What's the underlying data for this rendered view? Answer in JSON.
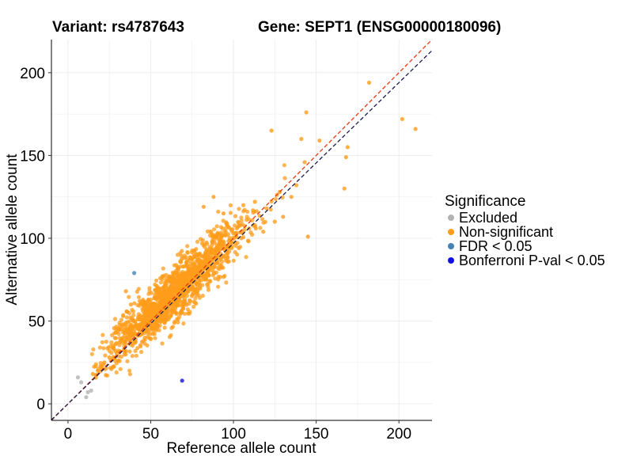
{
  "chart_data": {
    "type": "scatter",
    "title_left": "Variant: rs4787643",
    "title_right": "Gene: SEPT1 (ENSG00000180096)",
    "xlabel": "Reference allele count",
    "ylabel": "Alternative allele count",
    "xlim": [
      -10,
      220
    ],
    "ylim": [
      -10,
      220
    ],
    "xticks": [
      0,
      50,
      100,
      150,
      200
    ],
    "yticks": [
      0,
      50,
      100,
      150,
      200
    ],
    "grid": true,
    "reference_lines": [
      {
        "name": "identity",
        "color": "#e8380d",
        "style": "dashed",
        "slope": 1.0
      },
      {
        "name": "fitted",
        "color": "#1a1a50",
        "style": "dashed",
        "slope": 0.97
      }
    ],
    "legend": {
      "title": "Significance",
      "position": "right",
      "entries": [
        {
          "label": "Excluded",
          "color": "#b3b3b3"
        },
        {
          "label": "Non-significant",
          "color": "#ff9c1a"
        },
        {
          "label": "FDR < 0.05",
          "color": "#4682b4"
        },
        {
          "label": "Bonferroni P-val < 0.05",
          "color": "#1010e0"
        }
      ]
    },
    "series": [
      {
        "name": "Non-significant",
        "color": "#ff9c1a",
        "note": "bulk cloud of ~1500 points around y = x (approx. range 15-125), plus listed outliers",
        "cloud": {
          "n": 1500,
          "center": [
            65,
            68
          ],
          "sd_along": 20,
          "sd_across": 6,
          "min": 14
        },
        "points": [
          [
            182,
            194
          ],
          [
            144,
            176
          ],
          [
            123,
            165
          ],
          [
            202,
            172
          ],
          [
            210,
            166
          ],
          [
            141,
            160
          ],
          [
            152,
            159
          ],
          [
            169,
            155
          ],
          [
            168,
            149
          ],
          [
            143,
            146
          ],
          [
            167,
            130
          ],
          [
            145,
            101
          ],
          [
            130,
            113
          ],
          [
            120,
            118
          ],
          [
            135,
            125
          ],
          [
            113,
            122
          ],
          [
            106,
            120
          ],
          [
            125,
            110
          ],
          [
            128,
            128
          ],
          [
            138,
            132
          ],
          [
            118,
            104
          ],
          [
            100,
            103
          ],
          [
            96,
            109
          ],
          [
            94,
            115
          ],
          [
            88,
            125
          ],
          [
            82,
            119
          ],
          [
            35,
            68
          ],
          [
            38,
            60
          ],
          [
            25,
            28
          ],
          [
            20,
            22
          ],
          [
            22,
            25
          ],
          [
            18,
            20
          ],
          [
            15,
            18
          ]
        ]
      },
      {
        "name": "Excluded",
        "color": "#b3b3b3",
        "points": [
          [
            6,
            16
          ],
          [
            11,
            4
          ],
          [
            12,
            7
          ],
          [
            14,
            8
          ],
          [
            8,
            13
          ]
        ]
      },
      {
        "name": "FDR < 0.05",
        "color": "#4682b4",
        "points": [
          [
            40,
            79
          ]
        ]
      },
      {
        "name": "Bonferroni P-val < 0.05",
        "color": "#1010e0",
        "points": [
          [
            69,
            14
          ]
        ]
      }
    ]
  }
}
